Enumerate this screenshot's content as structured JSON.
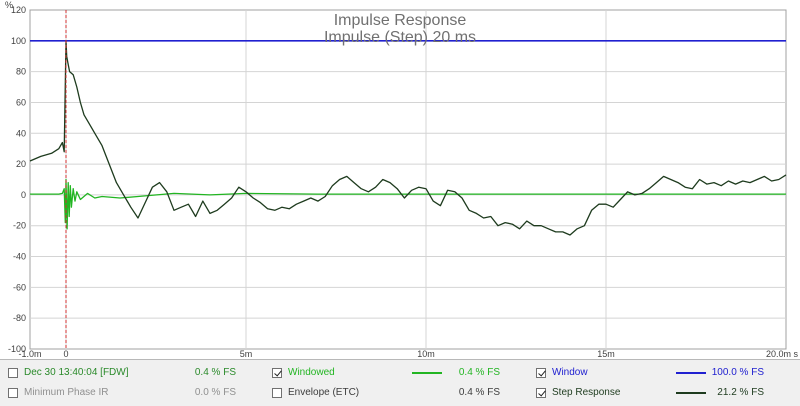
{
  "colors": {
    "dec30_fdw": "#2a8a2a",
    "minimum_phase": "#909090",
    "windowed": "#22b522",
    "envelope": "#3c3c3c",
    "window": "#2020d0",
    "step_response": "#1e3b1e",
    "cursor_line": "#d03030",
    "grid": "#d4d4d4"
  },
  "chart_data": {
    "type": "line",
    "title": "Impulse Response",
    "subtitle": "Impulse (Step) 20 ms",
    "xlabel": "",
    "ylabel": "%",
    "xlim": [
      -1.0,
      20.0
    ],
    "ylim": [
      -100,
      120
    ],
    "grid": true,
    "x_ticks": [
      {
        "v": -1,
        "label": "-1.0m"
      },
      {
        "v": 0,
        "label": "0"
      },
      {
        "v": 5,
        "label": "5m"
      },
      {
        "v": 10,
        "label": "10m"
      },
      {
        "v": 15,
        "label": "15m"
      },
      {
        "v": 20,
        "label": "20.0m s"
      }
    ],
    "y_ticks": [
      {
        "v": 120,
        "label": "120"
      },
      {
        "v": 100,
        "label": "100"
      },
      {
        "v": 80,
        "label": "80"
      },
      {
        "v": 60,
        "label": "60"
      },
      {
        "v": 40,
        "label": "40"
      },
      {
        "v": 20,
        "label": "20"
      },
      {
        "v": 0,
        "label": "0"
      },
      {
        "v": -20,
        "label": "-20"
      },
      {
        "v": -40,
        "label": "-40"
      },
      {
        "v": -60,
        "label": "-60"
      },
      {
        "v": -80,
        "label": "-80"
      },
      {
        "v": -100,
        "label": "-100"
      }
    ],
    "cursor_x": 0,
    "series": [
      {
        "name": "Window",
        "color": "#2020d0",
        "x": [
          -1.0,
          20.0
        ],
        "y": [
          100,
          100
        ]
      },
      {
        "name": "Windowed",
        "color": "#22b522",
        "x": [
          -1.0,
          -0.2,
          -0.1,
          -0.05,
          -0.02,
          0.0,
          0.03,
          0.06,
          0.09,
          0.12,
          0.15,
          0.2,
          0.25,
          0.3,
          0.4,
          0.6,
          0.8,
          1.0,
          1.5,
          2.0,
          3.0,
          4.0,
          5.0,
          7.0,
          10.0,
          13.0,
          15.0,
          17.0,
          20.0
        ],
        "y": [
          0.5,
          0.5,
          1,
          4,
          -18,
          10,
          -22,
          8,
          -14,
          6,
          -8,
          4,
          -4,
          2,
          -3,
          1,
          -2,
          -1,
          -2,
          -1,
          1,
          0,
          1,
          0.5,
          0.5,
          0.5,
          0.5,
          0.5,
          0.5
        ]
      },
      {
        "name": "Step Response",
        "color": "#1e3b1e",
        "x": [
          -1.0,
          -0.7,
          -0.4,
          -0.2,
          -0.1,
          -0.05,
          0.0,
          0.02,
          0.05,
          0.1,
          0.2,
          0.3,
          0.4,
          0.5,
          0.6,
          0.8,
          1.0,
          1.2,
          1.4,
          1.6,
          1.8,
          2.0,
          2.2,
          2.4,
          2.6,
          2.8,
          3.0,
          3.2,
          3.4,
          3.6,
          3.8,
          4.0,
          4.2,
          4.4,
          4.6,
          4.8,
          5.0,
          5.2,
          5.4,
          5.6,
          5.8,
          6.0,
          6.2,
          6.4,
          6.6,
          6.8,
          7.0,
          7.2,
          7.4,
          7.6,
          7.8,
          8.0,
          8.2,
          8.4,
          8.6,
          8.8,
          9.0,
          9.2,
          9.4,
          9.6,
          9.8,
          10.0,
          10.2,
          10.4,
          10.6,
          10.8,
          11.0,
          11.2,
          11.4,
          11.6,
          11.8,
          12.0,
          12.2,
          12.4,
          12.6,
          12.8,
          13.0,
          13.2,
          13.4,
          13.6,
          13.8,
          14.0,
          14.2,
          14.4,
          14.6,
          14.8,
          15.0,
          15.2,
          15.4,
          15.6,
          15.8,
          16.0,
          16.2,
          16.4,
          16.6,
          16.8,
          17.0,
          17.2,
          17.4,
          17.6,
          17.8,
          18.0,
          18.2,
          18.4,
          18.6,
          18.8,
          19.0,
          19.2,
          19.4,
          19.6,
          19.8,
          20.0
        ],
        "y": [
          22,
          25,
          27,
          30,
          34,
          28,
          100,
          90,
          86,
          80,
          78,
          70,
          60,
          52,
          48,
          40,
          32,
          20,
          8,
          0,
          -8,
          -15,
          -5,
          5,
          8,
          2,
          -10,
          -8,
          -6,
          -14,
          -4,
          -12,
          -10,
          -6,
          -2,
          5,
          2,
          -2,
          -5,
          -9,
          -10,
          -8,
          -9,
          -6,
          -4,
          -2,
          -4,
          -1,
          6,
          10,
          12,
          8,
          4,
          2,
          5,
          10,
          8,
          4,
          -2,
          3,
          5,
          4,
          -4,
          -7,
          3,
          2,
          -2,
          -10,
          -12,
          -15,
          -14,
          -20,
          -18,
          -19,
          -22,
          -17,
          -20,
          -20,
          -22,
          -24,
          -24,
          -26,
          -22,
          -20,
          -10,
          -6,
          -6,
          -8,
          -3,
          2,
          0,
          1,
          4,
          8,
          12,
          10,
          8,
          5,
          4,
          10,
          7,
          8,
          6,
          9,
          7,
          9,
          8,
          10,
          12,
          9,
          10,
          13
        ]
      }
    ]
  },
  "legend": {
    "rows": [
      [
        {
          "id": "dec30-fdw",
          "label": "Dec 30 13:40:04 [FDW]",
          "checked": false,
          "value": "0.4 % FS",
          "color_key": "dec30_fdw",
          "has_swatch": false
        },
        {
          "id": "windowed",
          "label": "Windowed",
          "checked": true,
          "value": "0.4 % FS",
          "color_key": "windowed",
          "has_swatch": true
        },
        {
          "id": "window",
          "label": "Window",
          "checked": true,
          "value": "100.0 % FS",
          "color_key": "window",
          "has_swatch": true
        }
      ],
      [
        {
          "id": "minimum-phase",
          "label": "Minimum Phase IR",
          "checked": false,
          "value": "0.0 % FS",
          "color_key": "minimum_phase",
          "has_swatch": false
        },
        {
          "id": "envelope",
          "label": "Envelope (ETC)",
          "checked": false,
          "value": "0.4 % FS",
          "color_key": "envelope",
          "has_swatch": false
        },
        {
          "id": "step-response",
          "label": "Step Response",
          "checked": true,
          "value": "21.2 % FS",
          "color_key": "step_response",
          "has_swatch": true
        }
      ]
    ]
  }
}
